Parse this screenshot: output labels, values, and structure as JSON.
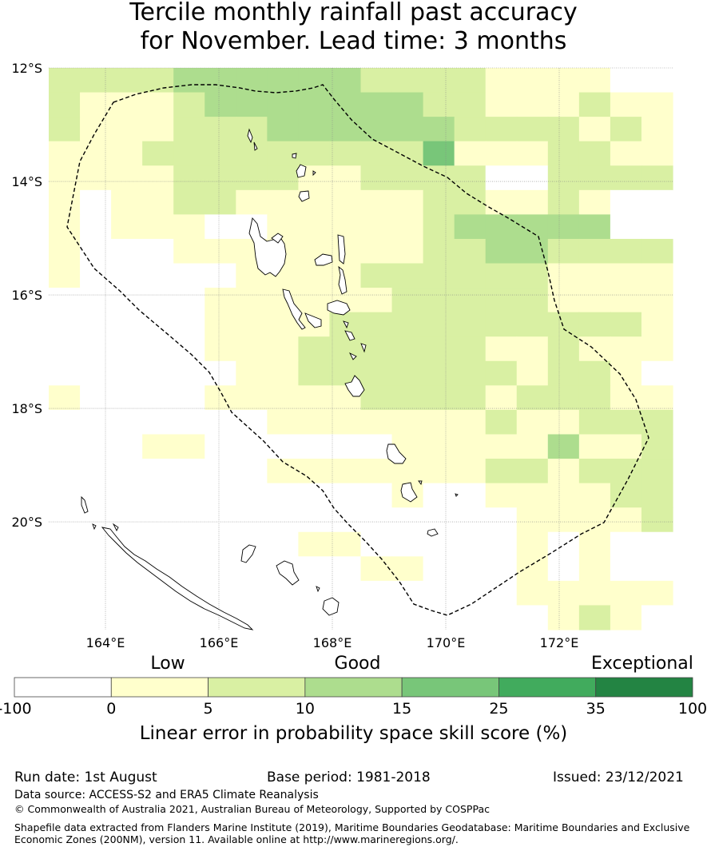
{
  "title_line1": "Tercile monthly rainfall past accuracy",
  "title_line2": "for November. Lead time: 3 months",
  "map": {
    "lat_labels": [
      "12°S",
      "14°S",
      "16°S",
      "18°S",
      "20°S"
    ],
    "lon_labels": [
      "164°E",
      "166°E",
      "168°E",
      "170°E",
      "172°E"
    ],
    "lat_range": [
      -21.9,
      -12.0
    ],
    "lon_range": [
      163.0,
      174.0
    ],
    "grid_rows": [
      "22223333332222111100",
      "21112333333322111211",
      "21112223333332222121",
      "11122222222241112211",
      "11112222112222002222",
      "10112211111122112100",
      "10111001111123333300",
      "10001111111122332222",
      "10000011112222221111",
      "00000111111222221111",
      "00000111122222222221",
      "00000111222222112111",
      "00000011222222212210",
      "10000111112222122211",
      "00000001111111211222",
      "00011000000111113112",
      "00000001111111221222",
      "00000000000100111122",
      "00000000000000011112",
      "00000000110000010100",
      "00000000001100010100",
      "00000000000000011111",
      "00000000000000001210"
    ],
    "grid_note": "rows north-to-south from -12.0 to -21.9, cols west-to-east from 163.0 to 174.0; digit = colour class index"
  },
  "legend": {
    "labels_above": [
      "Low",
      "Good",
      "Exceptional"
    ],
    "ticks": [
      "-100",
      "0",
      "5",
      "10",
      "15",
      "25",
      "35",
      "100"
    ],
    "colors": [
      "#ffffff",
      "#ffffcc",
      "#d9f0a3",
      "#addd8e",
      "#78c679",
      "#41ab5d",
      "#238443"
    ],
    "title": "Linear error in probability space skill score (%)"
  },
  "footer": {
    "run_date": "Run date: 1st August",
    "base_period": "Base period: 1981-2018",
    "issued": "Issued: 23/12/2021",
    "data_source": "Data source: ACCESS-S2 and ERA5 Climate Reanalysis",
    "copyright": "© Commonwealth of Australia 2021, Australian Bureau of Meteorology, Supported by COSPPac",
    "shapefile_line1": "Shapefile data extracted from Flanders Marine Institute (2019), Maritime Boundaries Geodatabase: Maritime Boundaries and Exclusive",
    "shapefile_line2": "Economic Zones (200NM), version 11. Available online at http://www.marineregions.org/."
  }
}
